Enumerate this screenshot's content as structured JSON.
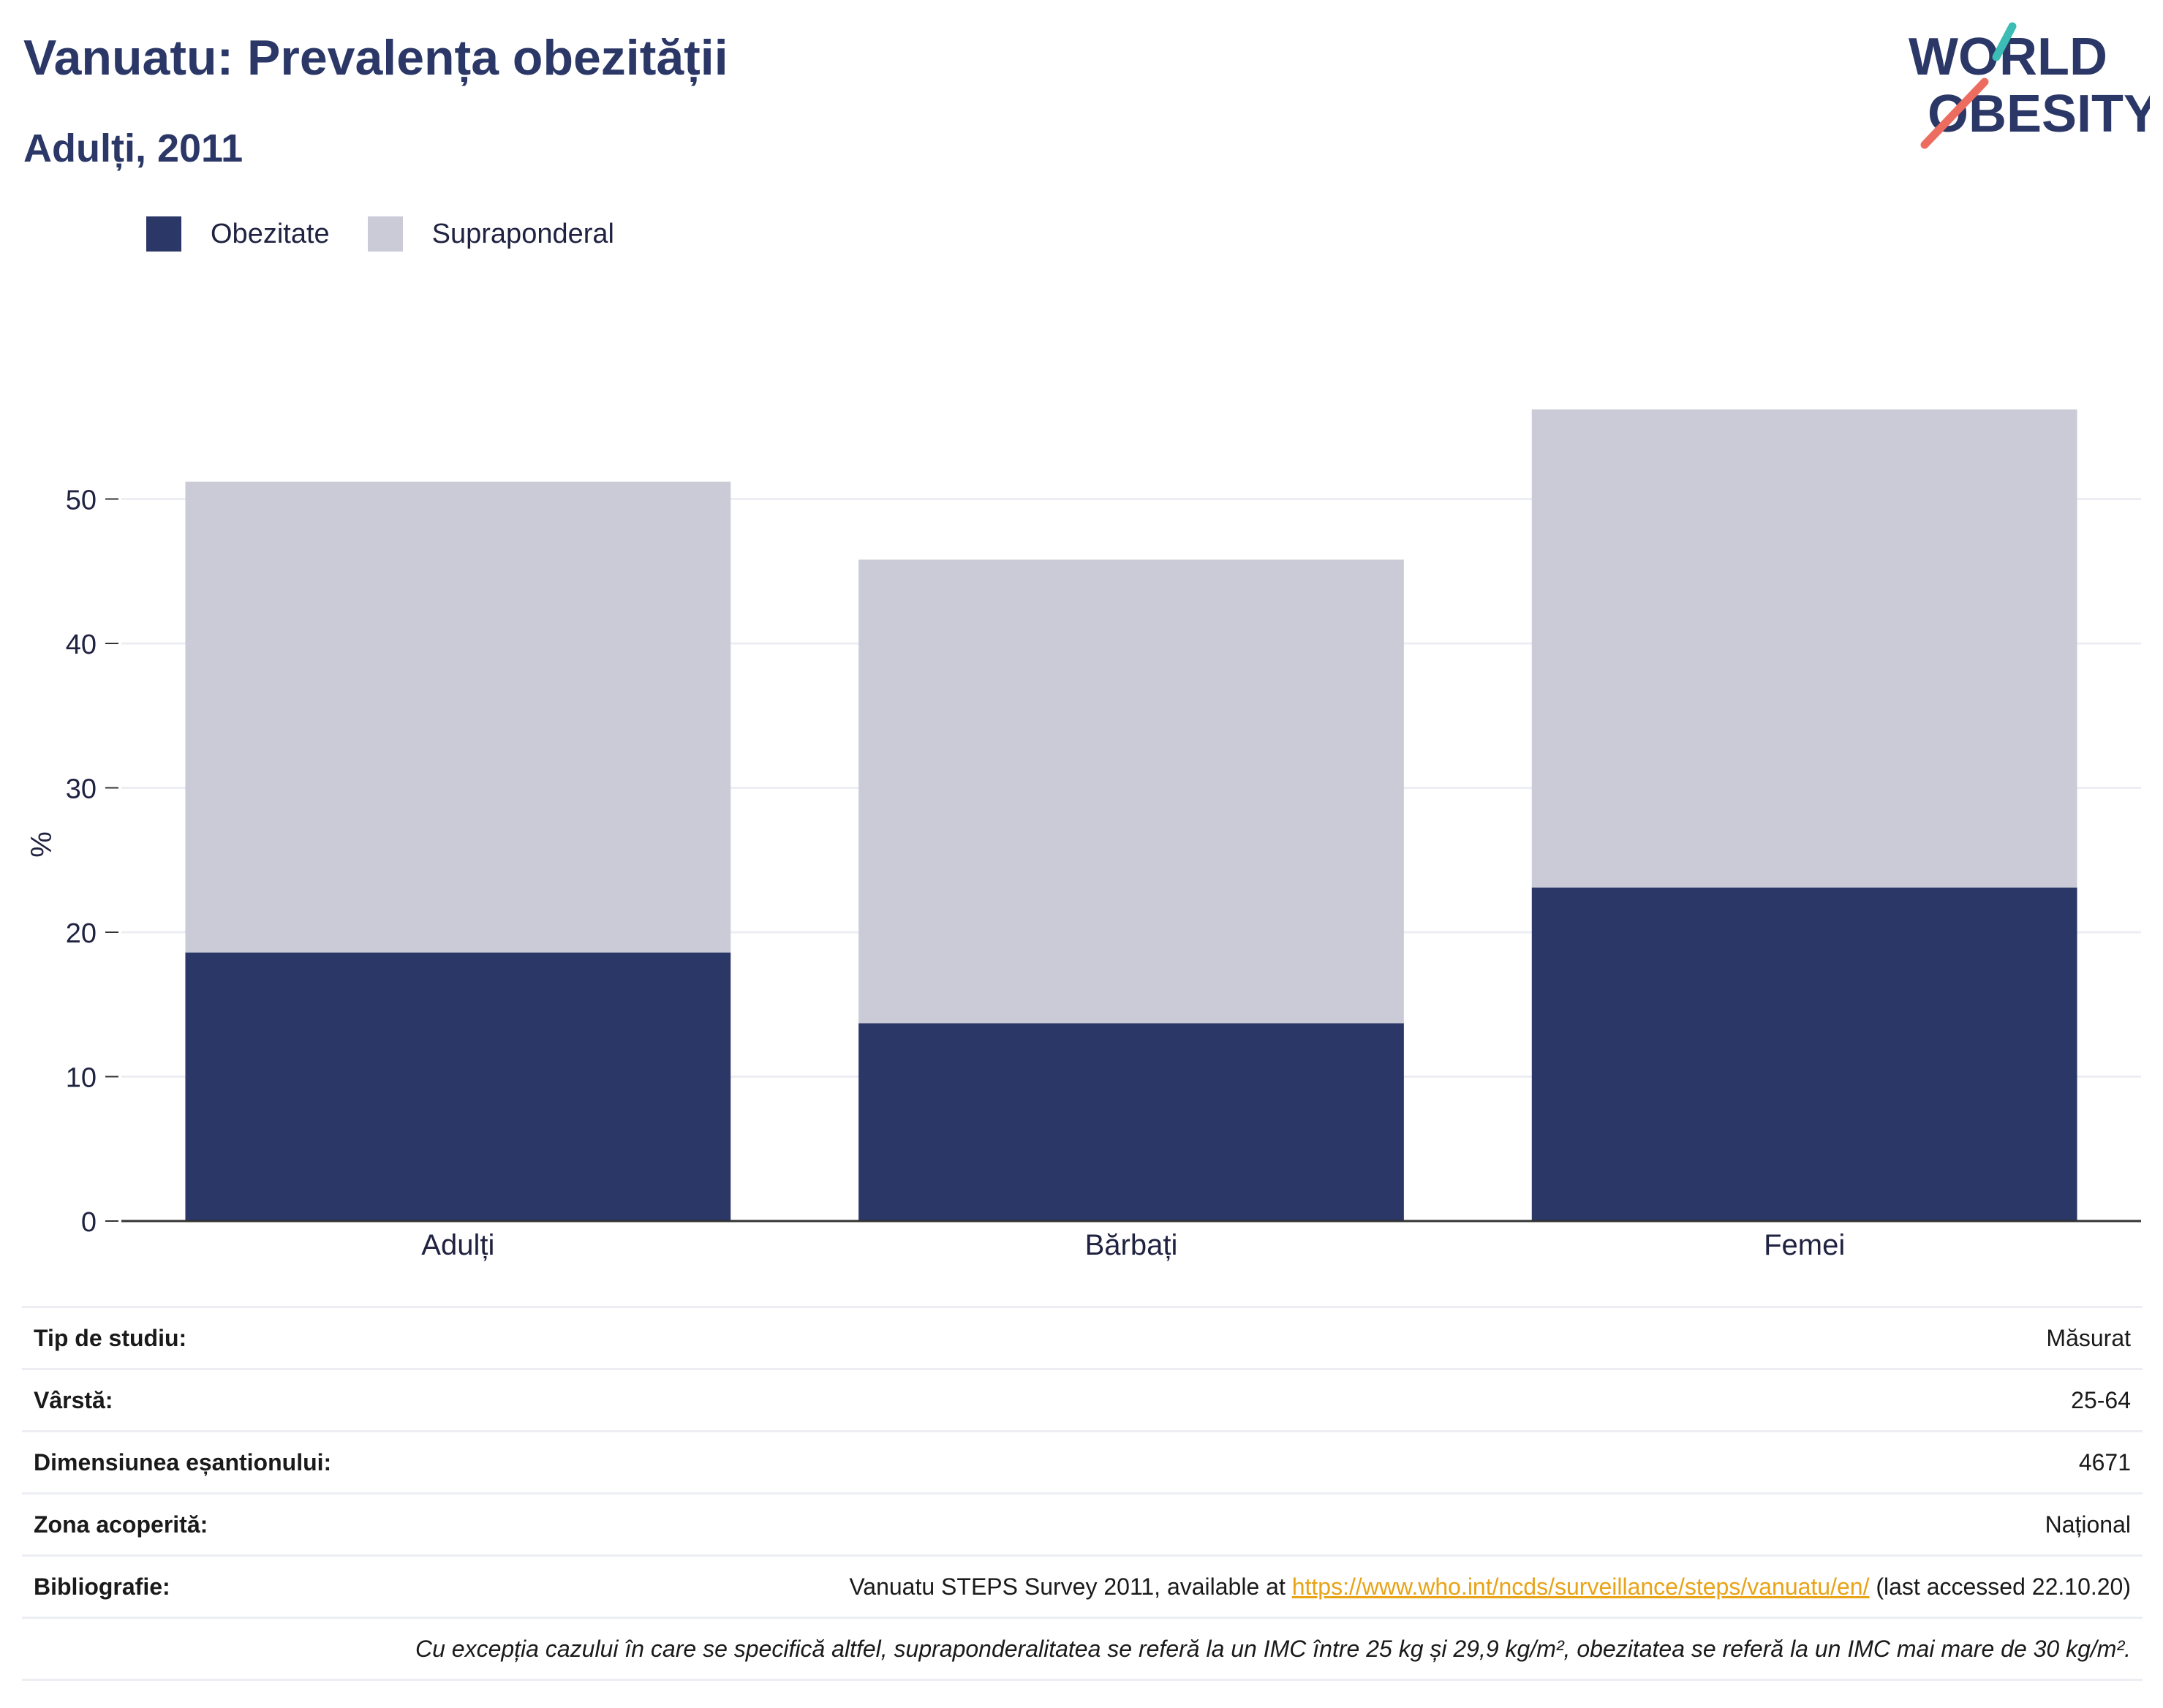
{
  "header": {
    "title": "Vanuatu: Prevalența obezității",
    "subtitle": "Adulți, 2011"
  },
  "logo": {
    "line1": "WORLD",
    "line2": "OBESITY",
    "colors": {
      "text": "#2b3766",
      "slash_teal": "#3bbcb4",
      "slash_coral": "#ec6d5f"
    }
  },
  "colors": {
    "obezitate": "#2b3766",
    "supraponderal": "#cacbd7",
    "grid": "#eceef4",
    "axis": "#333333"
  },
  "legend": {
    "items": [
      {
        "label": "Obezitate",
        "color": "#2b3766"
      },
      {
        "label": "Supraponderal",
        "color": "#cacbd7"
      }
    ],
    "placement": "top-left"
  },
  "chart_data": {
    "type": "bar",
    "stacked": true,
    "categories": [
      "Adulți",
      "Bărbați",
      "Femei"
    ],
    "series": [
      {
        "name": "Obezitate",
        "values": [
          18.6,
          13.7,
          23.1
        ]
      },
      {
        "name": "Supraponderal",
        "values": [
          32.6,
          32.1,
          33.1
        ]
      }
    ],
    "ylabel": "%",
    "ylim": [
      0,
      56.2
    ],
    "yticks": [
      "0",
      "10",
      "20",
      "30",
      "40",
      "50"
    ],
    "grid": true
  },
  "info": {
    "rows": [
      {
        "label": "Tip de studiu:",
        "value": "Măsurat"
      },
      {
        "label": "Vârstă:",
        "value": "25-64"
      },
      {
        "label": "Dimensiunea eșantionului:",
        "value": "4671"
      },
      {
        "label": "Zona acoperită:",
        "value": "Național"
      }
    ],
    "bibliography": {
      "label": "Bibliografie:",
      "prefix": "Vanuatu STEPS Survey 2011, available at ",
      "link": "https://www.who.int/ncds/surveillance/steps/vanuatu/en/",
      "suffix": " (last accessed 22.10.20)"
    },
    "note": "Cu excepția cazului în care se specifică altfel, supraponderalitatea se referă la un IMC între 25 kg și 29,9 kg/m², obezitatea se referă la un IMC mai mare de 30 kg/m²."
  }
}
